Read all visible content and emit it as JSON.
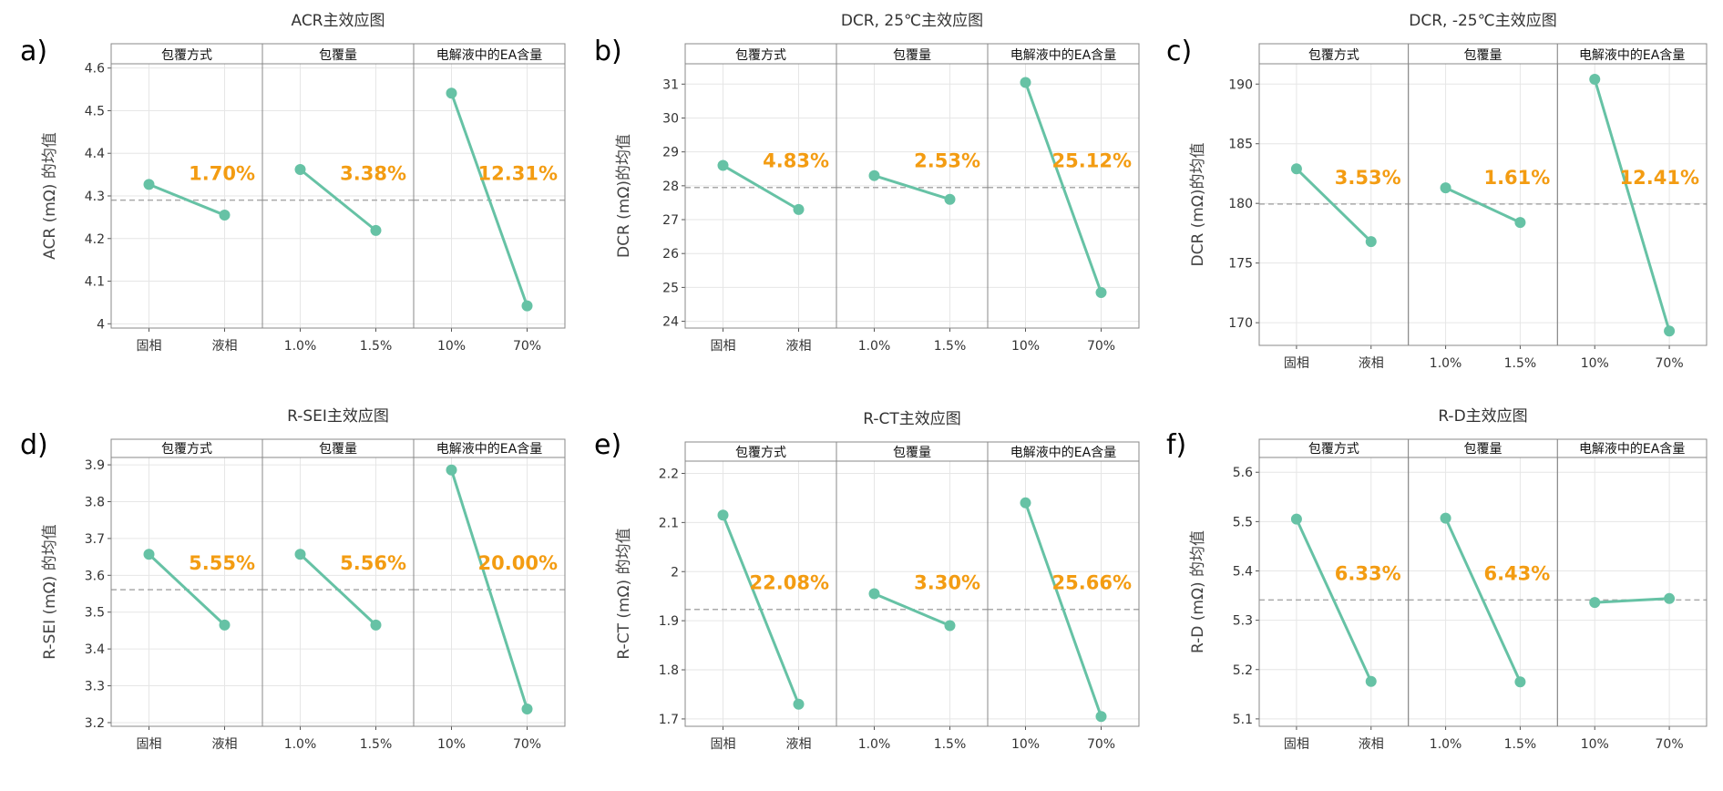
{
  "colors": {
    "line": "#66c2a5",
    "label": "#f39c12",
    "mean_line": "#aaaaaa",
    "grid": "#e6e6e6",
    "border": "#888888"
  },
  "chart_data": [
    {
      "type": "line",
      "panel_label": "a)",
      "title": "ACR主效应图",
      "ylabel": "ACR (mΩ) 的均值",
      "ylim": [
        3.99,
        4.61
      ],
      "yticks": [
        4.0,
        4.1,
        4.2,
        4.3,
        4.4,
        4.5,
        4.6
      ],
      "mean": 4.29,
      "facets": [
        {
          "name": "包覆方式",
          "categories": [
            "固相",
            "液相"
          ],
          "values": [
            4.327,
            4.255
          ],
          "label": "1.70%"
        },
        {
          "name": "包覆量",
          "categories": [
            "1.0%",
            "1.5%"
          ],
          "values": [
            4.362,
            4.219
          ],
          "label": "3.38%"
        },
        {
          "name": "电解液中的EA含量",
          "categories": [
            "10%",
            "70%"
          ],
          "values": [
            4.541,
            4.042
          ],
          "label": "12.31%"
        }
      ]
    },
    {
      "type": "line",
      "panel_label": "b)",
      "title": "DCR, 25℃主效应图",
      "ylabel": "DCR (mΩ)的均值",
      "ylim": [
        23.8,
        31.6
      ],
      "yticks": [
        24,
        25,
        26,
        27,
        28,
        29,
        30,
        31
      ],
      "mean": 27.95,
      "facets": [
        {
          "name": "包覆方式",
          "categories": [
            "固相",
            "液相"
          ],
          "values": [
            28.6,
            27.3
          ],
          "label": "4.83%"
        },
        {
          "name": "包覆量",
          "categories": [
            "1.0%",
            "1.5%"
          ],
          "values": [
            28.3,
            27.6
          ],
          "label": "2.53%"
        },
        {
          "name": "电解液中的EA含量",
          "categories": [
            "10%",
            "70%"
          ],
          "values": [
            31.05,
            24.85
          ],
          "label": "25.12%"
        }
      ]
    },
    {
      "type": "line",
      "panel_label": "c)",
      "title": "DCR, -25℃主效应图",
      "ylabel": "DCR (mΩ)的均值",
      "ylim": [
        168.1,
        191.7
      ],
      "yticks": [
        170,
        175,
        180,
        185,
        190
      ],
      "mean": 179.95,
      "facets": [
        {
          "name": "包覆方式",
          "categories": [
            "固相",
            "液相"
          ],
          "values": [
            182.9,
            176.8
          ],
          "label": "3.53%"
        },
        {
          "name": "包覆量",
          "categories": [
            "1.0%",
            "1.5%"
          ],
          "values": [
            181.3,
            178.4
          ],
          "label": "1.61%"
        },
        {
          "name": "电解液中的EA含量",
          "categories": [
            "10%",
            "70%"
          ],
          "values": [
            190.4,
            169.3
          ],
          "label": "12.41%"
        }
      ]
    },
    {
      "type": "line",
      "panel_label": "d)",
      "title": "R-SEI主效应图",
      "ylabel": "R-SEI (mΩ) 的均值",
      "ylim": [
        3.19,
        3.92
      ],
      "yticks": [
        3.2,
        3.3,
        3.4,
        3.5,
        3.6,
        3.7,
        3.8,
        3.9
      ],
      "mean": 3.561,
      "facets": [
        {
          "name": "包覆方式",
          "categories": [
            "固相",
            "液相"
          ],
          "values": [
            3.657,
            3.465
          ],
          "label": "5.55%"
        },
        {
          "name": "包覆量",
          "categories": [
            "1.0%",
            "1.5%"
          ],
          "values": [
            3.657,
            3.465
          ],
          "label": "5.56%"
        },
        {
          "name": "电解液中的EA含量",
          "categories": [
            "10%",
            "70%"
          ],
          "values": [
            3.886,
            3.237
          ],
          "label": "20.00%"
        }
      ]
    },
    {
      "type": "line",
      "panel_label": "e)",
      "title": "R-CT主效应图",
      "ylabel": "R-CT (mΩ) 的均值",
      "ylim": [
        1.685,
        2.225
      ],
      "yticks": [
        1.7,
        1.8,
        1.9,
        2.0,
        2.1,
        2.2
      ],
      "mean": 1.923,
      "facets": [
        {
          "name": "包覆方式",
          "categories": [
            "固相",
            "液相"
          ],
          "values": [
            2.115,
            1.73
          ],
          "label": "22.08%"
        },
        {
          "name": "包覆量",
          "categories": [
            "1.0%",
            "1.5%"
          ],
          "values": [
            1.955,
            1.89
          ],
          "label": "3.30%"
        },
        {
          "name": "电解液中的EA含量",
          "categories": [
            "10%",
            "70%"
          ],
          "values": [
            2.14,
            1.705
          ],
          "label": "25.66%"
        }
      ]
    },
    {
      "type": "line",
      "panel_label": "f)",
      "title": "R-D主效应图",
      "ylabel": "R-D (mΩ) 的均值",
      "ylim": [
        5.085,
        5.63
      ],
      "yticks": [
        5.1,
        5.2,
        5.3,
        5.4,
        5.5,
        5.6
      ],
      "mean": 5.341,
      "facets": [
        {
          "name": "包覆方式",
          "categories": [
            "固相",
            "液相"
          ],
          "values": [
            5.505,
            5.176
          ],
          "label": "6.33%"
        },
        {
          "name": "包覆量",
          "categories": [
            "1.0%",
            "1.5%"
          ],
          "values": [
            5.507,
            5.175
          ],
          "label": "6.43%"
        },
        {
          "name": "电解液中的EA含量",
          "categories": [
            "10%",
            "70%"
          ],
          "values": [
            5.336,
            5.344
          ],
          "label": ""
        }
      ]
    }
  ]
}
